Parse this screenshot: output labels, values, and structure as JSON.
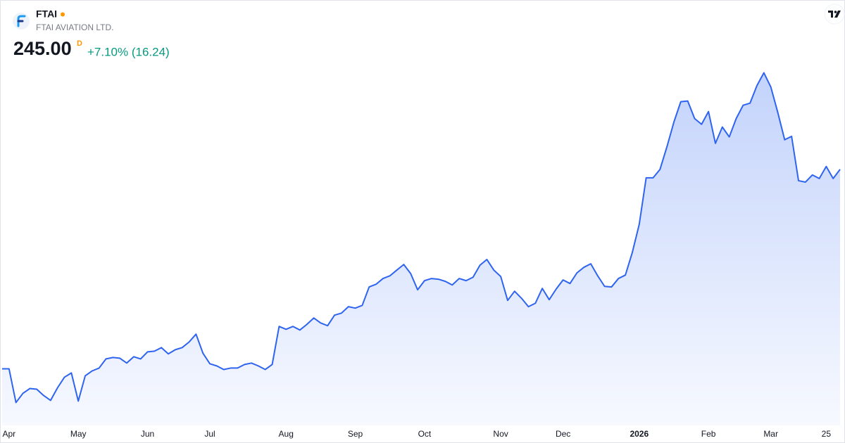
{
  "header": {
    "symbol": "FTAI",
    "name": "FTAI AVIATION LTD.",
    "price": "245.00",
    "price_marker": "D",
    "change": "+7.10% (16.24)"
  },
  "chart_data": {
    "type": "area",
    "color": "#2f64f0",
    "fill_top": "#c3d3fb",
    "fill_bottom": "#f7f9ff",
    "ylim": [
      66,
      328
    ],
    "grid": false,
    "categories": [
      null,
      "Apr",
      null,
      null,
      null,
      null,
      null,
      null,
      null,
      null,
      null,
      "May",
      null,
      null,
      null,
      null,
      null,
      null,
      null,
      null,
      null,
      "Jun",
      null,
      null,
      null,
      null,
      null,
      null,
      null,
      null,
      "Jul",
      null,
      null,
      null,
      null,
      null,
      null,
      null,
      null,
      null,
      null,
      "Aug",
      null,
      null,
      null,
      null,
      null,
      null,
      null,
      null,
      null,
      "Sep",
      null,
      null,
      null,
      null,
      null,
      null,
      null,
      null,
      null,
      "Oct",
      null,
      null,
      null,
      null,
      null,
      null,
      null,
      null,
      null,
      null,
      "Nov",
      null,
      null,
      null,
      null,
      null,
      null,
      null,
      null,
      "Dec",
      null,
      null,
      null,
      null,
      null,
      null,
      null,
      null,
      null,
      null,
      "2026",
      null,
      null,
      null,
      null,
      null,
      null,
      null,
      null,
      null,
      "Feb",
      null,
      null,
      null,
      null,
      null,
      null,
      null,
      null,
      "Mar",
      null,
      null,
      null,
      null,
      null,
      null,
      null,
      "25",
      null,
      null
    ],
    "series": [
      {
        "name": "FTAI",
        "color": "#2f64f0",
        "values": [
          105.6,
          105.6,
          82.0,
          88.4,
          91.8,
          91.3,
          86.9,
          83.5,
          92.3,
          99.7,
          102.7,
          83.0,
          100.7,
          104.1,
          106.1,
          112.5,
          113.5,
          113.0,
          109.6,
          114.0,
          112.5,
          117.4,
          117.9,
          120.4,
          116.0,
          118.9,
          120.4,
          124.3,
          129.8,
          116.5,
          109.1,
          107.6,
          105.1,
          106.1,
          106.1,
          108.6,
          109.6,
          107.6,
          105.1,
          108.6,
          135.2,
          133.2,
          135.2,
          132.7,
          136.6,
          141.1,
          137.6,
          135.7,
          143.1,
          144.5,
          149.0,
          148.0,
          149.9,
          162.8,
          164.7,
          168.7,
          170.6,
          174.6,
          178.5,
          172.1,
          160.8,
          167.2,
          168.7,
          168.2,
          166.7,
          164.2,
          168.7,
          167.2,
          169.6,
          178.0,
          182.0,
          174.6,
          170.1,
          153.4,
          159.8,
          154.9,
          149.0,
          151.4,
          161.8,
          153.9,
          161.3,
          167.7,
          165.2,
          172.6,
          176.5,
          179.0,
          170.6,
          163.2,
          162.8,
          168.7,
          171.1,
          186.9,
          206.6,
          239.1,
          239.1,
          245.0,
          260.8,
          278.0,
          292.3,
          292.8,
          280.5,
          276.5,
          285.4,
          263.2,
          274.6,
          267.7,
          280.5,
          289.8,
          291.3,
          303.6,
          312.5,
          302.6,
          284.9,
          265.7,
          268.1,
          237.1,
          236.1,
          241.1,
          238.6,
          247.0,
          238.6,
          245.0
        ]
      }
    ]
  }
}
